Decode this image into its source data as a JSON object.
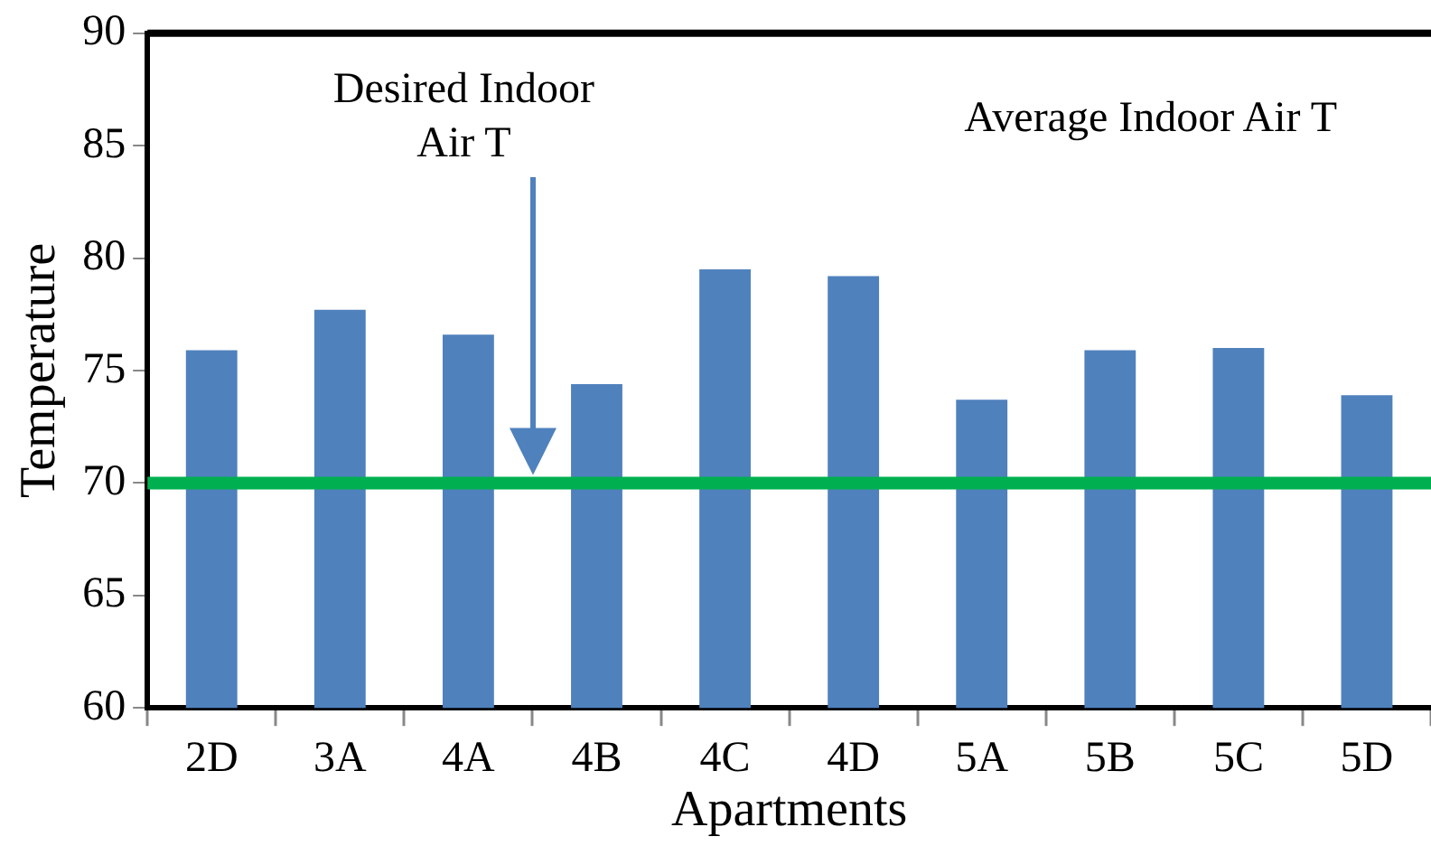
{
  "chart_data": {
    "type": "bar",
    "xlabel": "Apartments",
    "ylabel": "Temperature",
    "categories": [
      "2D",
      "3A",
      "4A",
      "4B",
      "4C",
      "4D",
      "5A",
      "5B",
      "5C",
      "5D"
    ],
    "values": [
      75.9,
      77.7,
      76.6,
      74.4,
      79.5,
      79.2,
      73.7,
      75.9,
      76.0,
      73.9
    ],
    "color": "#4f81bd",
    "ylim": [
      60,
      90
    ],
    "yticks": [
      60,
      65,
      70,
      75,
      80,
      85,
      90
    ],
    "grid": false,
    "legend": false,
    "ref_lines": [
      {
        "axis": "y",
        "value": 70,
        "color": "#00b050"
      }
    ],
    "annotations": [
      "Desired Indoor Air T",
      "Average Indoor Air T"
    ]
  }
}
